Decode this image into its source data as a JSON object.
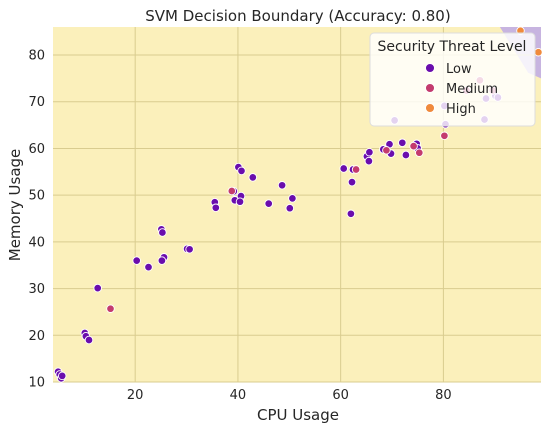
{
  "chart_data": {
    "type": "scatter",
    "title": "SVM Decision Boundary (Accuracy: 0.80)",
    "xlabel": "CPU Usage",
    "ylabel": "Memory Usage",
    "xlim": [
      4,
      99
    ],
    "ylim": [
      10,
      86
    ],
    "xticks": [
      20,
      40,
      60,
      80
    ],
    "yticks": [
      10,
      20,
      30,
      40,
      50,
      60,
      70,
      80
    ],
    "grid": true,
    "legend_title": "Security Threat Level",
    "legend_position": "top-right",
    "decision_regions": [
      {
        "class": "Low",
        "color": "#fbf0bb",
        "description": "background region"
      },
      {
        "class": "High",
        "color": "#c7b4e0",
        "polygon": [
          [
            91,
            86
          ],
          [
            99,
            86
          ],
          [
            99,
            75
          ],
          [
            96.5,
            76.2
          ]
        ]
      }
    ],
    "series": [
      {
        "name": "Low",
        "color": "#6a0dad",
        "points": [
          [
            5,
            12.2
          ],
          [
            5.3,
            11.6
          ],
          [
            5.6,
            10.8
          ],
          [
            5.8,
            11.3
          ],
          [
            10.2,
            20.5
          ],
          [
            10.4,
            19.8
          ],
          [
            11,
            19
          ],
          [
            12.7,
            30.1
          ],
          [
            20.3,
            36
          ],
          [
            22.6,
            34.6
          ],
          [
            25.1,
            42.7
          ],
          [
            25.3,
            42
          ],
          [
            25.6,
            36.7
          ],
          [
            25.2,
            36
          ],
          [
            30.1,
            38.5
          ],
          [
            30.6,
            38.4
          ],
          [
            35.5,
            48.5
          ],
          [
            35.7,
            47.3
          ],
          [
            39.2,
            50.8
          ],
          [
            39.4,
            48.9
          ],
          [
            40.1,
            56
          ],
          [
            40.7,
            55.2
          ],
          [
            40.6,
            49.8
          ],
          [
            40.4,
            48.6
          ],
          [
            42.9,
            53.8
          ],
          [
            46,
            48.2
          ],
          [
            48.6,
            52.1
          ],
          [
            50.1,
            47.2
          ],
          [
            50.6,
            49.3
          ],
          [
            60.6,
            55.7
          ],
          [
            62,
            46
          ],
          [
            62.2,
            52.8
          ],
          [
            62.4,
            55.5
          ],
          [
            65.1,
            58.3
          ],
          [
            65.5,
            57.3
          ],
          [
            65.6,
            59.2
          ],
          [
            68.3,
            59.8
          ],
          [
            69.5,
            60.9
          ],
          [
            69.8,
            58.9
          ],
          [
            70.5,
            66
          ],
          [
            72,
            61.2
          ],
          [
            72.7,
            58.6
          ],
          [
            74.8,
            61
          ],
          [
            75,
            60
          ],
          [
            80.2,
            69.1
          ],
          [
            80.4,
            65.2
          ],
          [
            88,
            66.2
          ],
          [
            88.3,
            70.7
          ],
          [
            90.1,
            71.3
          ],
          [
            90.6,
            70.9
          ]
        ]
      },
      {
        "name": "Medium",
        "color": "#c43b6e",
        "points": [
          [
            15.2,
            25.7
          ],
          [
            38.8,
            50.9
          ],
          [
            63,
            55.5
          ],
          [
            68.9,
            59.6
          ],
          [
            74.2,
            60.5
          ],
          [
            75.3,
            59.1
          ],
          [
            80.2,
            62.7
          ],
          [
            84.5,
            72.4
          ],
          [
            87.1,
            74.6
          ],
          [
            89.6,
            72.4
          ]
        ]
      },
      {
        "name": "High",
        "color": "#f08a3c",
        "points": [
          [
            95,
            85.2
          ],
          [
            98.5,
            80.6
          ]
        ]
      }
    ]
  }
}
